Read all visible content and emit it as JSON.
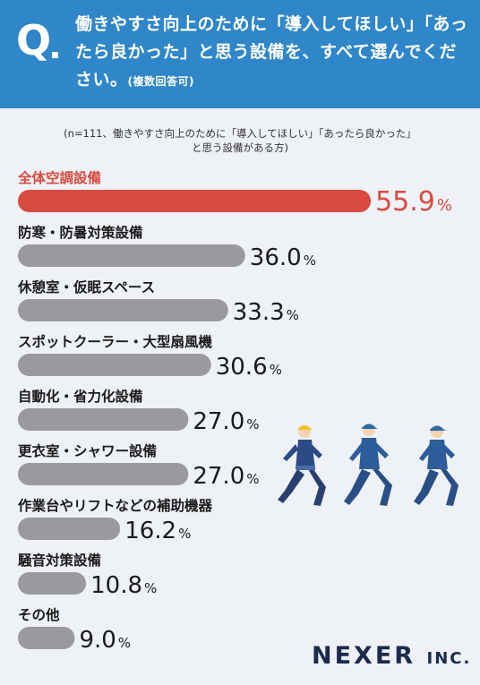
{
  "header": {
    "q_mark": "Q",
    "question": "働きやすさ向上のために「導入してほしい」「あったら良かった」と思う設備を、すべて選んでください。",
    "question_suffix": "(複数回答可)"
  },
  "note": {
    "line1": "(n=111、働きやすさ向上のために「導入してほしい」「あったら良かった」",
    "line2": "と思う設備がある方)"
  },
  "chart_data": {
    "type": "bar",
    "orientation": "horizontal",
    "categories": [
      "全体空調設備",
      "防寒・防暑対策設備",
      "休憩室・仮眠スペース",
      "スポットクーラー・大型扇風機",
      "自動化・省力化設備",
      "更衣室・シャワー設備",
      "作業台やリフトなどの補助機器",
      "騒音対策設備",
      "その他"
    ],
    "values": [
      55.9,
      36.0,
      33.3,
      30.6,
      27.0,
      27.0,
      16.2,
      10.8,
      9.0
    ],
    "value_labels": [
      "55.9",
      "36.0",
      "33.3",
      "30.6",
      "27.0",
      "27.0",
      "16.2",
      "10.8",
      "9.0"
    ],
    "unit": "%",
    "highlight_color": "#d94a40",
    "bar_color": "#9a9a9e",
    "highlight_text_color": "#d94a40",
    "label_text_color": "#1a1a1a"
  },
  "colors": {
    "header_bg": "#2f86c8",
    "page_bg": "#eef1f6"
  },
  "illustration": {
    "name": "three-running-workers",
    "icon": "runner-icon"
  },
  "brand": {
    "name": "NEXER",
    "suffix": "INC."
  }
}
